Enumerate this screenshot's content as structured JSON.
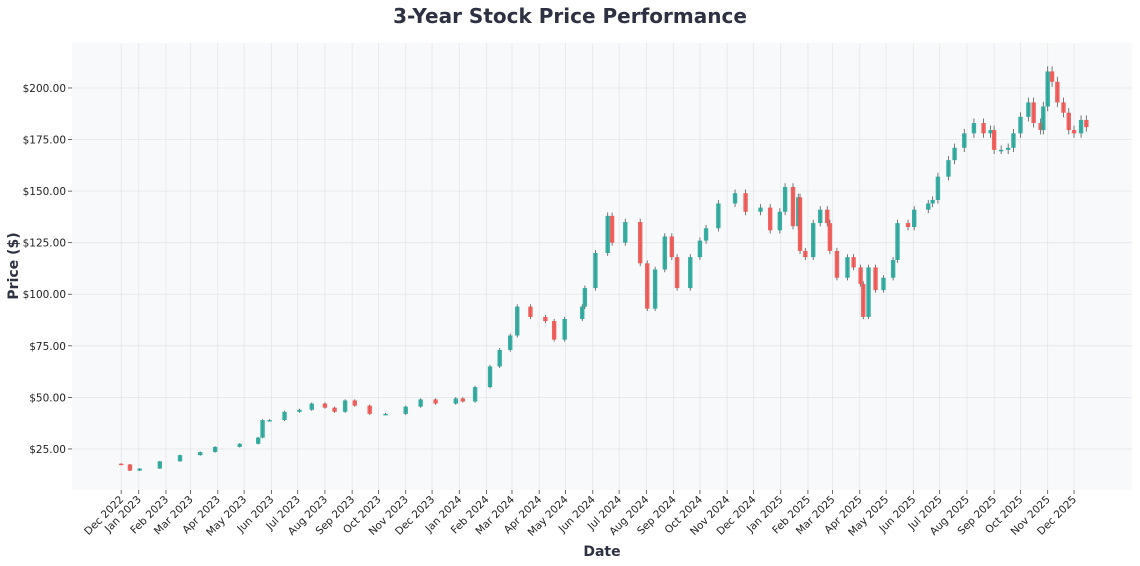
{
  "chart_data": {
    "type": "candlestick",
    "title": "3-Year Stock Price Performance",
    "xlabel": "Date",
    "ylabel": "Price ($)",
    "ylim": [
      5.1,
      221.8
    ],
    "xlim": [
      "2022-10-17",
      "2026-02-05"
    ],
    "grid": true,
    "colors": {
      "up": "#26a69a",
      "down": "#ef5350",
      "background": "#f8f9fa",
      "grid": "#e4e6ea",
      "title": "#2d3142"
    },
    "y_ticks": [
      {
        "value": 25,
        "label": "$25.00"
      },
      {
        "value": 50,
        "label": "$50.00"
      },
      {
        "value": 75,
        "label": "$75.00"
      },
      {
        "value": 100,
        "label": "$100.00"
      },
      {
        "value": 125,
        "label": "$125.00"
      },
      {
        "value": 150,
        "label": "$150.00"
      },
      {
        "value": 175,
        "label": "$175.00"
      },
      {
        "value": 200,
        "label": "$200.00"
      }
    ],
    "x_ticks": [
      {
        "date": "2022-12-12",
        "label": "Dec 2022"
      },
      {
        "date": "2023-01-01",
        "label": "Jan 2023"
      },
      {
        "date": "2023-02-01",
        "label": "Feb 2023"
      },
      {
        "date": "2023-03-01",
        "label": "Mar 2023"
      },
      {
        "date": "2023-04-01",
        "label": "Apr 2023"
      },
      {
        "date": "2023-05-01",
        "label": "May 2023"
      },
      {
        "date": "2023-06-01",
        "label": "Jun 2023"
      },
      {
        "date": "2023-07-01",
        "label": "Jul 2023"
      },
      {
        "date": "2023-08-01",
        "label": "Aug 2023"
      },
      {
        "date": "2023-09-01",
        "label": "Sep 2023"
      },
      {
        "date": "2023-10-01",
        "label": "Oct 2023"
      },
      {
        "date": "2023-11-01",
        "label": "Nov 2023"
      },
      {
        "date": "2023-12-01",
        "label": "Dec 2023"
      },
      {
        "date": "2024-01-01",
        "label": "Jan 2024"
      },
      {
        "date": "2024-02-01",
        "label": "Feb 2024"
      },
      {
        "date": "2024-03-01",
        "label": "Mar 2024"
      },
      {
        "date": "2024-04-01",
        "label": "Apr 2024"
      },
      {
        "date": "2024-05-01",
        "label": "May 2024"
      },
      {
        "date": "2024-06-01",
        "label": "Jun 2024"
      },
      {
        "date": "2024-07-01",
        "label": "Jul 2024"
      },
      {
        "date": "2024-08-01",
        "label": "Aug 2024"
      },
      {
        "date": "2024-09-01",
        "label": "Sep 2024"
      },
      {
        "date": "2024-10-01",
        "label": "Oct 2024"
      },
      {
        "date": "2024-11-01",
        "label": "Nov 2024"
      },
      {
        "date": "2024-12-01",
        "label": "Dec 2024"
      },
      {
        "date": "2025-01-01",
        "label": "Jan 2025"
      },
      {
        "date": "2025-02-01",
        "label": "Feb 2025"
      },
      {
        "date": "2025-03-01",
        "label": "Mar 2025"
      },
      {
        "date": "2025-04-01",
        "label": "Apr 2025"
      },
      {
        "date": "2025-05-01",
        "label": "May 2025"
      },
      {
        "date": "2025-06-01",
        "label": "Jun 2025"
      },
      {
        "date": "2025-07-01",
        "label": "Jul 2025"
      },
      {
        "date": "2025-08-01",
        "label": "Aug 2025"
      },
      {
        "date": "2025-09-01",
        "label": "Sep 2025"
      },
      {
        "date": "2025-10-01",
        "label": "Oct 2025"
      },
      {
        "date": "2025-11-01",
        "label": "Nov 2025"
      },
      {
        "date": "2025-12-01",
        "label": "Dec 2025"
      }
    ],
    "closes": [
      [
        "2022-12-12",
        17.5
      ],
      [
        "2022-12-22",
        14.5
      ],
      [
        "2023-01-02",
        15.5
      ],
      [
        "2023-01-25",
        19
      ],
      [
        "2023-02-17",
        22
      ],
      [
        "2023-03-12",
        23.5
      ],
      [
        "2023-03-29",
        26
      ],
      [
        "2023-04-26",
        27.5
      ],
      [
        "2023-05-17",
        30.5
      ],
      [
        "2023-05-22",
        39
      ],
      [
        "2023-05-30",
        39
      ],
      [
        "2023-06-16",
        43
      ],
      [
        "2023-07-03",
        44
      ],
      [
        "2023-07-17",
        47
      ],
      [
        "2023-08-01",
        45
      ],
      [
        "2023-08-12",
        43
      ],
      [
        "2023-08-24",
        48.5
      ],
      [
        "2023-09-04",
        46
      ],
      [
        "2023-09-21",
        42
      ],
      [
        "2023-10-09",
        42
      ],
      [
        "2023-11-01",
        45.5
      ],
      [
        "2023-11-18",
        49
      ],
      [
        "2023-12-05",
        47
      ],
      [
        "2023-12-28",
        49.5
      ],
      [
        "2024-01-05",
        48
      ],
      [
        "2024-01-19",
        55
      ],
      [
        "2024-02-05",
        65
      ],
      [
        "2024-02-16",
        73
      ],
      [
        "2024-02-28",
        80
      ],
      [
        "2024-03-07",
        94
      ],
      [
        "2024-03-22",
        89
      ],
      [
        "2024-04-08",
        87
      ],
      [
        "2024-04-18",
        78
      ],
      [
        "2024-04-30",
        88
      ],
      [
        "2024-05-20",
        94
      ],
      [
        "2024-05-23",
        103
      ],
      [
        "2024-06-04",
        120
      ],
      [
        "2024-06-18",
        138
      ],
      [
        "2024-06-23",
        125
      ],
      [
        "2024-07-08",
        135
      ],
      [
        "2024-07-25",
        115
      ],
      [
        "2024-08-02",
        93
      ],
      [
        "2024-08-11",
        112
      ],
      [
        "2024-08-22",
        128
      ],
      [
        "2024-08-30",
        118
      ],
      [
        "2024-09-05",
        103
      ],
      [
        "2024-09-20",
        118
      ],
      [
        "2024-10-01",
        126
      ],
      [
        "2024-10-08",
        132
      ],
      [
        "2024-10-22",
        144
      ],
      [
        "2024-11-10",
        149
      ],
      [
        "2024-11-22",
        140
      ],
      [
        "2024-12-09",
        142
      ],
      [
        "2024-12-20",
        131
      ],
      [
        "2024-12-31",
        140
      ],
      [
        "2025-01-06",
        152
      ],
      [
        "2025-01-15",
        133
      ],
      [
        "2025-01-21",
        147
      ],
      [
        "2025-01-23",
        121
      ],
      [
        "2025-01-29",
        118
      ],
      [
        "2025-02-07",
        134.5
      ],
      [
        "2025-02-15",
        141
      ],
      [
        "2025-02-23",
        134.5
      ],
      [
        "2025-02-26",
        121
      ],
      [
        "2025-03-06",
        108
      ],
      [
        "2025-03-18",
        118
      ],
      [
        "2025-03-25",
        113
      ],
      [
        "2025-04-02",
        105
      ],
      [
        "2025-04-05",
        89
      ],
      [
        "2025-04-11",
        113
      ],
      [
        "2025-04-19",
        102
      ],
      [
        "2025-04-28",
        108
      ],
      [
        "2025-05-09",
        116.6
      ],
      [
        "2025-05-14",
        134.5
      ],
      [
        "2025-05-26",
        132.6
      ],
      [
        "2025-06-02",
        141
      ],
      [
        "2025-06-18",
        144
      ],
      [
        "2025-06-23",
        145.7
      ],
      [
        "2025-06-29",
        157
      ],
      [
        "2025-07-11",
        165
      ],
      [
        "2025-07-18",
        171
      ],
      [
        "2025-07-29",
        178
      ],
      [
        "2025-08-09",
        183
      ],
      [
        "2025-08-20",
        178
      ],
      [
        "2025-08-28",
        179.6
      ],
      [
        "2025-09-01",
        170
      ],
      [
        "2025-09-09",
        170
      ],
      [
        "2025-09-17",
        171
      ],
      [
        "2025-09-23",
        178
      ],
      [
        "2025-10-01",
        186
      ],
      [
        "2025-10-10",
        193
      ],
      [
        "2025-10-16",
        183
      ],
      [
        "2025-10-24",
        179.6
      ],
      [
        "2025-10-27",
        191
      ],
      [
        "2025-11-01",
        208
      ],
      [
        "2025-11-06",
        203
      ],
      [
        "2025-11-12",
        193
      ],
      [
        "2025-11-19",
        188
      ],
      [
        "2025-11-25",
        179.6
      ],
      [
        "2025-12-01",
        178
      ],
      [
        "2025-12-09",
        184.5
      ],
      [
        "2025-12-15",
        181
      ]
    ]
  }
}
